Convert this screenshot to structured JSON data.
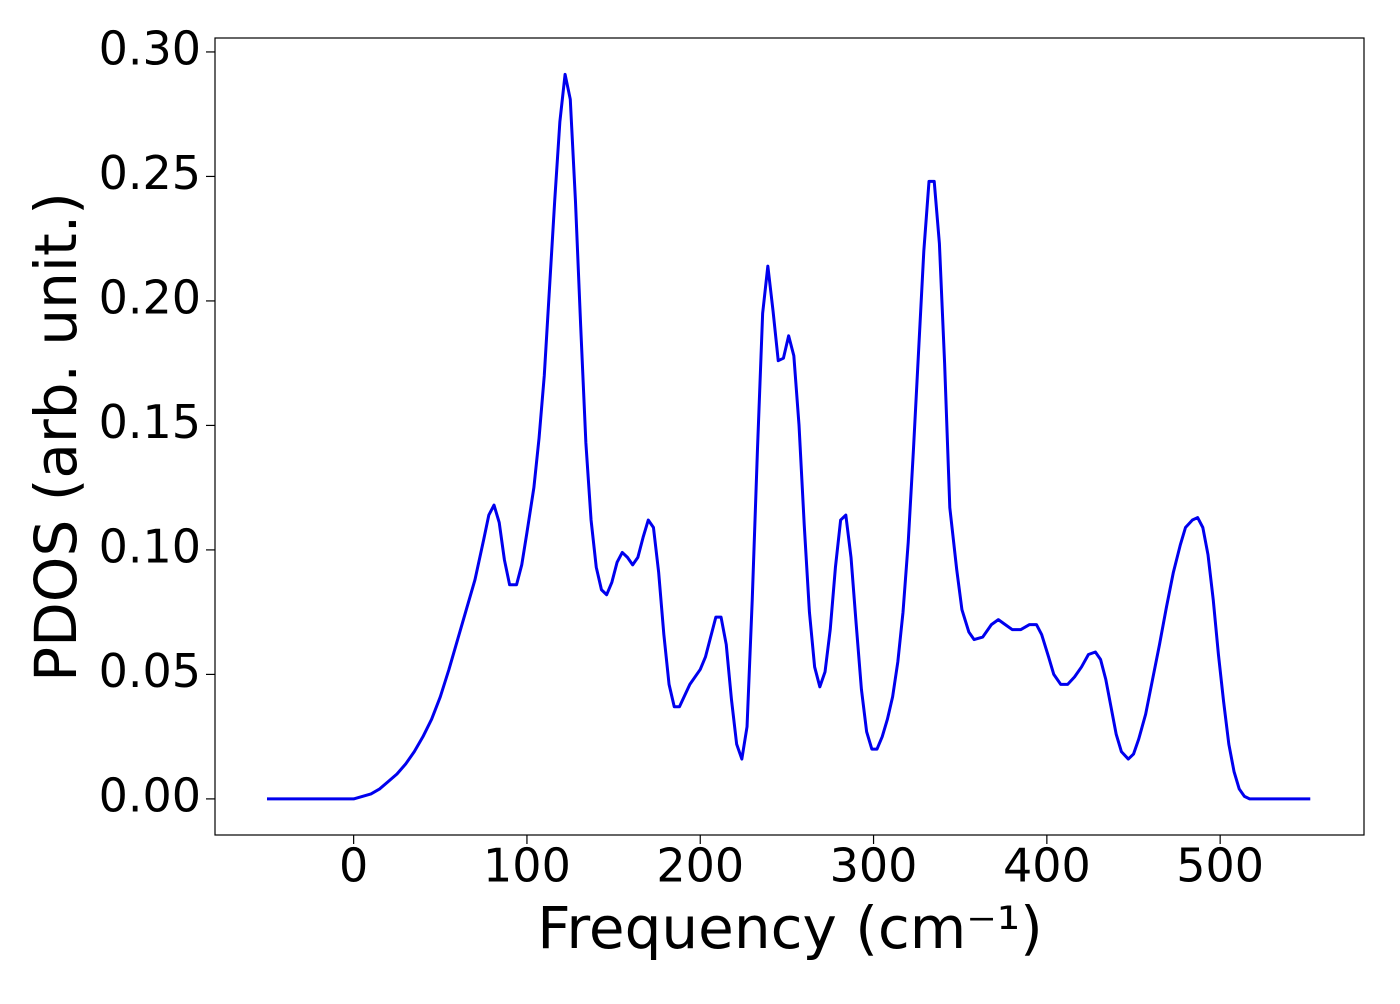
{
  "chart_data": {
    "type": "line",
    "xlabel": "Frequency (cm⁻¹)",
    "ylabel": "PDOS (arb. unit.)",
    "xlim": [
      -80,
      583
    ],
    "ylim": [
      -0.0145,
      0.3056
    ],
    "xticks": [
      0,
      100,
      200,
      300,
      400,
      500
    ],
    "yticks": [
      {
        "value": 0,
        "label": "0.00"
      },
      {
        "value": 0.05,
        "label": "0.05"
      },
      {
        "value": 0.1,
        "label": "0.10"
      },
      {
        "value": 0.15,
        "label": "0.15"
      },
      {
        "value": 0.2,
        "label": "0.20"
      },
      {
        "value": 0.25,
        "label": "0.25"
      },
      {
        "value": 0.3,
        "label": "0.30"
      }
    ],
    "grid": false,
    "series": [
      {
        "color": "#0000ee",
        "x": [
          -50,
          0,
          5,
          10,
          15,
          20,
          25,
          30,
          35,
          40,
          45,
          50,
          55,
          60,
          65,
          70,
          75,
          78,
          81,
          84,
          87,
          90,
          94,
          97,
          100,
          104,
          107,
          110,
          113,
          116,
          119,
          122,
          125,
          128,
          131,
          134,
          137,
          140,
          143,
          146,
          149,
          152,
          155,
          158,
          161,
          164,
          167,
          170,
          173,
          176,
          179,
          182,
          185,
          188,
          194,
          200,
          203,
          206,
          209,
          212,
          215,
          218,
          221,
          224,
          227,
          230,
          233,
          236,
          239,
          242,
          245,
          248,
          251,
          254,
          257,
          260,
          263,
          266,
          269,
          272,
          275,
          278,
          281,
          284,
          287,
          290,
          293,
          296,
          299,
          302,
          305,
          308,
          311,
          314,
          317,
          320,
          323,
          326,
          329,
          332,
          335,
          338,
          341,
          344,
          348,
          351,
          355,
          358,
          363,
          368,
          372,
          376,
          380,
          385,
          390,
          394,
          397,
          401,
          404,
          408,
          412,
          416,
          420,
          424,
          428,
          431,
          434,
          437,
          440,
          443,
          447,
          450,
          453,
          457,
          461,
          465,
          469,
          473,
          477,
          480,
          484,
          487,
          490,
          493,
          496,
          499,
          502,
          505,
          508,
          511,
          514,
          517,
          520,
          552
        ],
        "values": [
          0,
          0,
          0.001,
          0.002,
          0.004,
          0.007,
          0.01,
          0.014,
          0.019,
          0.025,
          0.032,
          0.041,
          0.052,
          0.064,
          0.076,
          0.088,
          0.104,
          0.114,
          0.118,
          0.111,
          0.096,
          0.086,
          0.086,
          0.094,
          0.107,
          0.125,
          0.145,
          0.17,
          0.205,
          0.24,
          0.272,
          0.291,
          0.281,
          0.24,
          0.19,
          0.143,
          0.112,
          0.093,
          0.084,
          0.082,
          0.087,
          0.095,
          0.099,
          0.097,
          0.094,
          0.097,
          0.105,
          0.112,
          0.109,
          0.091,
          0.066,
          0.046,
          0.037,
          0.037,
          0.046,
          0.052,
          0.057,
          0.065,
          0.073,
          0.073,
          0.062,
          0.04,
          0.022,
          0.016,
          0.029,
          0.08,
          0.14,
          0.195,
          0.214,
          0.196,
          0.176,
          0.177,
          0.186,
          0.178,
          0.15,
          0.11,
          0.075,
          0.053,
          0.045,
          0.051,
          0.068,
          0.093,
          0.112,
          0.114,
          0.097,
          0.07,
          0.044,
          0.027,
          0.02,
          0.02,
          0.025,
          0.032,
          0.041,
          0.055,
          0.075,
          0.103,
          0.14,
          0.18,
          0.22,
          0.248,
          0.248,
          0.223,
          0.175,
          0.117,
          0.092,
          0.076,
          0.067,
          0.064,
          0.065,
          0.07,
          0.072,
          0.07,
          0.068,
          0.068,
          0.07,
          0.07,
          0.066,
          0.057,
          0.05,
          0.046,
          0.046,
          0.049,
          0.053,
          0.058,
          0.059,
          0.056,
          0.048,
          0.037,
          0.026,
          0.019,
          0.016,
          0.018,
          0.024,
          0.034,
          0.048,
          0.062,
          0.077,
          0.091,
          0.102,
          0.109,
          0.112,
          0.113,
          0.109,
          0.098,
          0.08,
          0.058,
          0.039,
          0.022,
          0.011,
          0.004,
          0.001,
          0,
          0,
          0
        ]
      }
    ]
  }
}
